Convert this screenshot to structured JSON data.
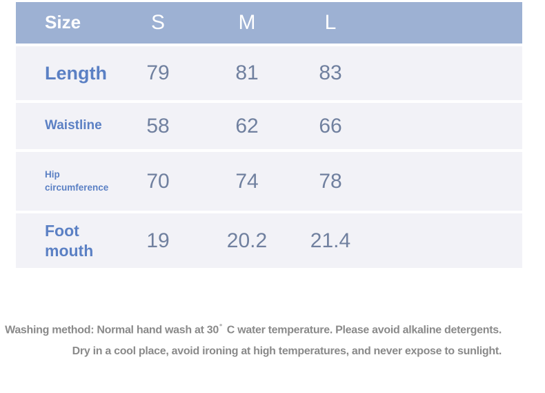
{
  "chart_data": {
    "type": "table",
    "title": "Size",
    "columns": [
      "Size",
      "S",
      "M",
      "L"
    ],
    "rows": [
      [
        "Length",
        79,
        81,
        83
      ],
      [
        "Waistline",
        58,
        62,
        66
      ],
      [
        "Hip circumference",
        70,
        74,
        78
      ],
      [
        "Foot mouth",
        19,
        20.2,
        21.4
      ]
    ],
    "layout_hints": {
      "header_fill": "#9db1d3",
      "row_fill": "#f2f2f7",
      "row_gap_fill": "#ffffff",
      "value_columns_aligned": "center"
    }
  },
  "care_instructions": {
    "line1_before_degree": "Washing method: Normal hand wash at 30",
    "degree_symbol": "°",
    "line1_after_degree": "C water temperature. Please avoid alkaline detergents.",
    "line2": "Dry in a cool place, avoid ironing at high temperatures, and never expose to sunlight."
  },
  "colors": {
    "header_bg": "#9db1d3",
    "row_bg": "#f2f2f7",
    "label_text": "#5b80c4",
    "value_text": "#70809f",
    "header_text": "#ffffff",
    "care_text": "#8a8a8a",
    "page_bg": "#ffffff"
  }
}
